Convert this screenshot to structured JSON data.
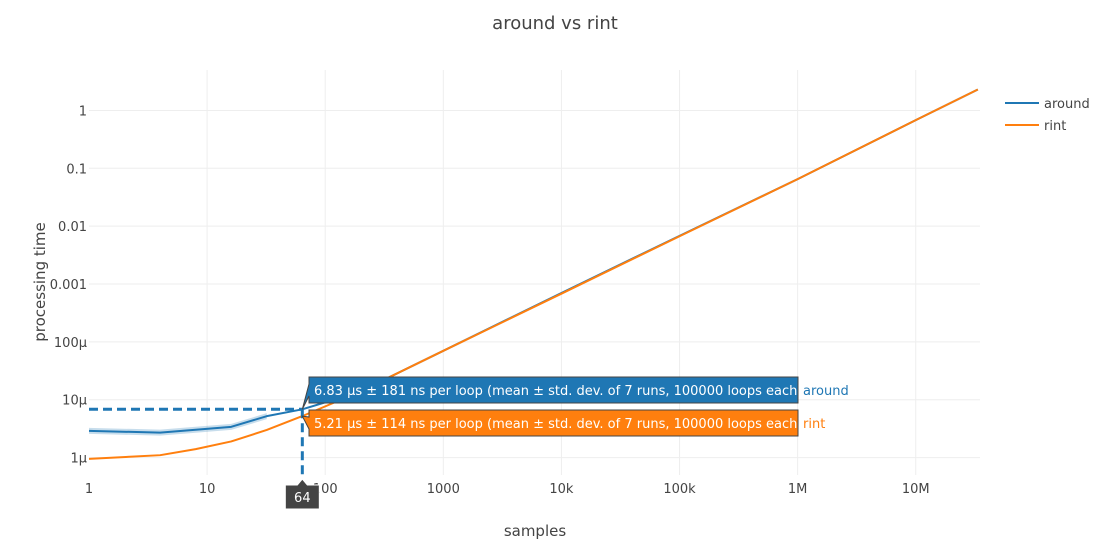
{
  "chart_data": {
    "type": "line",
    "title": "around vs rint",
    "xlabel": "samples",
    "ylabel": "processing time",
    "x_scale": "log",
    "y_scale": "log",
    "xlim": [
      1,
      35000000
    ],
    "ylim": [
      5e-07,
      5
    ],
    "x_ticks": [
      {
        "value": 1,
        "label": "1"
      },
      {
        "value": 10,
        "label": "10"
      },
      {
        "value": 100,
        "label": "100"
      },
      {
        "value": 1000,
        "label": "1000"
      },
      {
        "value": 10000,
        "label": "10k"
      },
      {
        "value": 100000,
        "label": "100k"
      },
      {
        "value": 1000000,
        "label": "1M"
      },
      {
        "value": 10000000,
        "label": "10M"
      }
    ],
    "y_ticks": [
      {
        "value": 1e-06,
        "label": "1µ"
      },
      {
        "value": 1e-05,
        "label": "10µ"
      },
      {
        "value": 0.0001,
        "label": "100µ"
      },
      {
        "value": 0.001,
        "label": "0.001"
      },
      {
        "value": 0.01,
        "label": "0.01"
      },
      {
        "value": 0.1,
        "label": "0.1"
      },
      {
        "value": 1,
        "label": "1"
      }
    ],
    "grid": true,
    "legend_position": "top-right",
    "series": [
      {
        "name": "around",
        "color": "#1f77b4",
        "x": [
          1,
          4,
          16,
          32,
          64,
          128,
          256,
          1000,
          10000,
          100000,
          1000000,
          10000000,
          33554432
        ],
        "y": [
          2.9e-06,
          2.7e-06,
          3.4e-06,
          5.2e-06,
          6.83e-06,
          1.05e-05,
          1.8e-05,
          7e-05,
          0.0007,
          0.0068,
          0.065,
          0.68,
          2.3
        ]
      },
      {
        "name": "rint",
        "color": "#ff7f0e",
        "x": [
          1,
          4,
          8,
          16,
          32,
          64,
          128,
          256,
          1000,
          10000,
          100000,
          1000000,
          10000000,
          33554432
        ],
        "y": [
          9.5e-07,
          1.1e-06,
          1.4e-06,
          1.9e-06,
          3e-06,
          5.21e-06,
          9.5e-06,
          1.8e-05,
          7e-05,
          0.00068,
          0.0067,
          0.065,
          0.68,
          2.3
        ]
      }
    ],
    "hover": {
      "x_label": "64",
      "entries": [
        {
          "series": "around",
          "text": "6.83 µs ± 181 ns per loop (mean ± std. dev. of 7 runs, 100000 loops each)",
          "value": 6.83e-06
        },
        {
          "series": "rint",
          "text": "5.21 µs ± 114 ns per loop (mean ± std. dev. of 7 runs, 100000 loops each)",
          "value": 5.21e-06
        }
      ]
    }
  }
}
